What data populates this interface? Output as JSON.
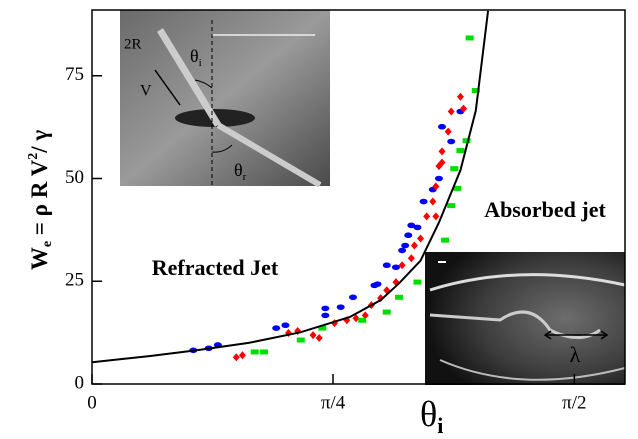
{
  "chart_data": {
    "type": "scatter",
    "y_label": [
      "W",
      "e",
      " = ρ ",
      "R V",
      "2",
      "/ γ"
    ],
    "x_label": [
      "θ",
      "i"
    ],
    "xlim": [
      0,
      1.736
    ],
    "ylim": [
      0,
      91
    ],
    "xticks": [
      0,
      {
        "value": 0.785,
        "label": "π/4"
      },
      {
        "value": 1.571,
        "label": "π/2"
      }
    ],
    "yticks": [
      0,
      25,
      50,
      75
    ],
    "annotations": [
      "Refracted Jet",
      "Absorbed jet"
    ],
    "inset_labels": {
      "radius": "2R",
      "velocity": "V",
      "theta_i": [
        "θ",
        "i"
      ],
      "theta_r": [
        "θ",
        "r"
      ],
      "wavelength": "λ"
    },
    "series": [
      {
        "color": "#0000ff",
        "marker": "oval",
        "x": [
          0.33,
          0.38,
          0.41,
          0.6,
          0.63,
          0.76,
          0.76,
          0.81,
          0.85,
          0.92,
          0.93,
          0.96,
          0.99,
          1.01,
          1.02,
          1.03,
          1.04,
          1.06,
          1.08,
          1.11,
          1.13,
          1.14,
          1.17,
          1.2
        ],
        "values": [
          8.2,
          8.7,
          9.5,
          13.6,
          14.3,
          16.7,
          18.4,
          18.7,
          21.1,
          24.0,
          24.3,
          28.9,
          28.4,
          32.5,
          33.7,
          36.2,
          38.6,
          38.1,
          44.4,
          47.3,
          50.0,
          62.6,
          59.0,
          66.3
        ]
      },
      {
        "color": "#ff0000",
        "marker": "diamond",
        "x": [
          0.47,
          0.49,
          0.64,
          0.67,
          0.72,
          0.74,
          0.79,
          0.83,
          0.86,
          0.89,
          0.91,
          0.94,
          0.96,
          0.99,
          1.01,
          1.04,
          1.05,
          1.07,
          1.09,
          1.11,
          1.12,
          1.13,
          1.14,
          1.16,
          1.17,
          1.2,
          1.21,
          1.14,
          1.12
        ],
        "values": [
          6.5,
          7.0,
          12.4,
          12.9,
          11.9,
          11.2,
          14.8,
          15.5,
          16.0,
          16.7,
          19.2,
          20.9,
          22.8,
          24.8,
          28.9,
          30.6,
          33.7,
          35.4,
          40.8,
          44.4,
          48.1,
          53.0,
          56.6,
          61.4,
          66.3,
          69.9,
          67.0,
          53.9,
          40.8
        ]
      },
      {
        "color": "#00dd00",
        "marker": "square",
        "x": [
          0.53,
          0.56,
          0.68,
          0.75,
          0.88,
          0.96,
          1.0,
          1.06,
          1.1,
          1.15,
          1.17,
          1.19,
          1.18,
          1.2,
          1.22,
          1.25,
          1.23
        ],
        "values": [
          7.8,
          7.8,
          10.7,
          13.6,
          15.5,
          17.5,
          21.1,
          24.8,
          30.1,
          35.0,
          43.4,
          47.6,
          52.4,
          56.8,
          59.2,
          71.4,
          84.2
        ]
      },
      {
        "color": "#000000",
        "marker": "line",
        "x": [
          0,
          0.19,
          0.35,
          0.51,
          0.68,
          0.84,
          0.94,
          1.0,
          1.07,
          1.13,
          1.2,
          1.25,
          1.29
        ],
        "values": [
          5.3,
          6.8,
          8.3,
          10.0,
          12.6,
          16.3,
          20.4,
          24.5,
          30.0,
          39.3,
          52.0,
          66.5,
          90.8
        ]
      }
    ]
  }
}
